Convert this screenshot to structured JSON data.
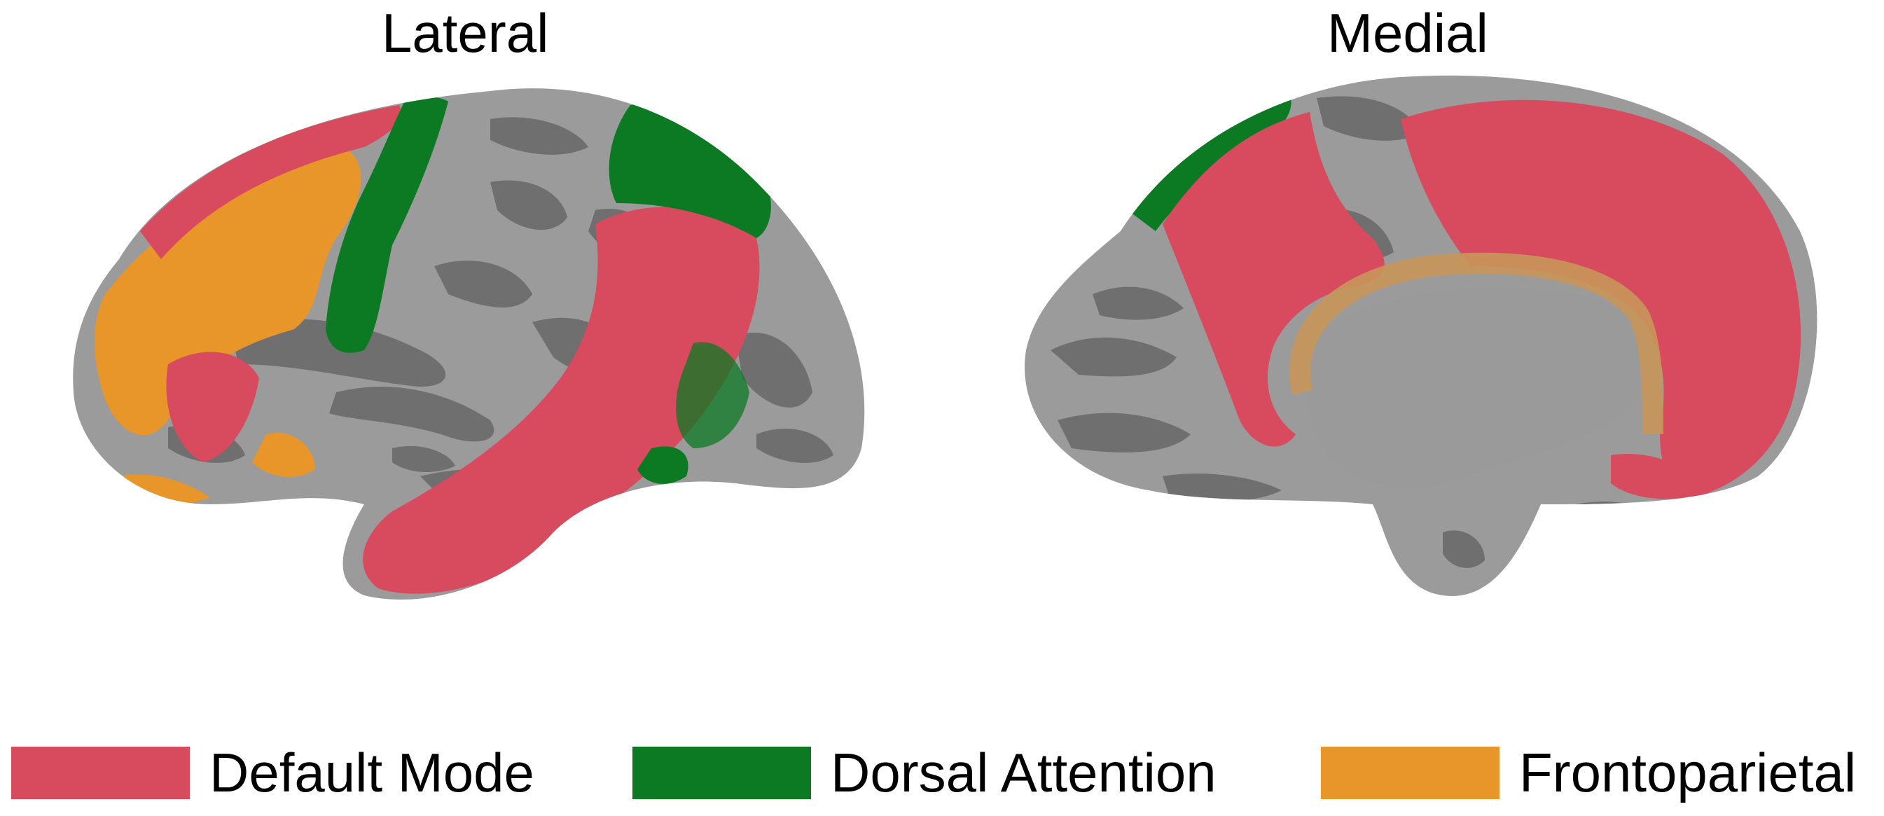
{
  "panels": {
    "lateral_title": "Lateral",
    "medial_title": "Medial"
  },
  "legend": {
    "items": [
      {
        "label": "Default Mode",
        "color": "#d84a5e"
      },
      {
        "label": "Dorsal Attention",
        "color": "#0b7a23"
      },
      {
        "label": "Frontoparietal",
        "color": "#e8962a"
      }
    ]
  },
  "colors": {
    "cortex_light": "#9b9b9b",
    "cortex_dark": "#6f6f6f",
    "default_mode": "#d84a5e",
    "dorsal_attention": "#0b7a23",
    "frontoparietal": "#e8962a"
  }
}
